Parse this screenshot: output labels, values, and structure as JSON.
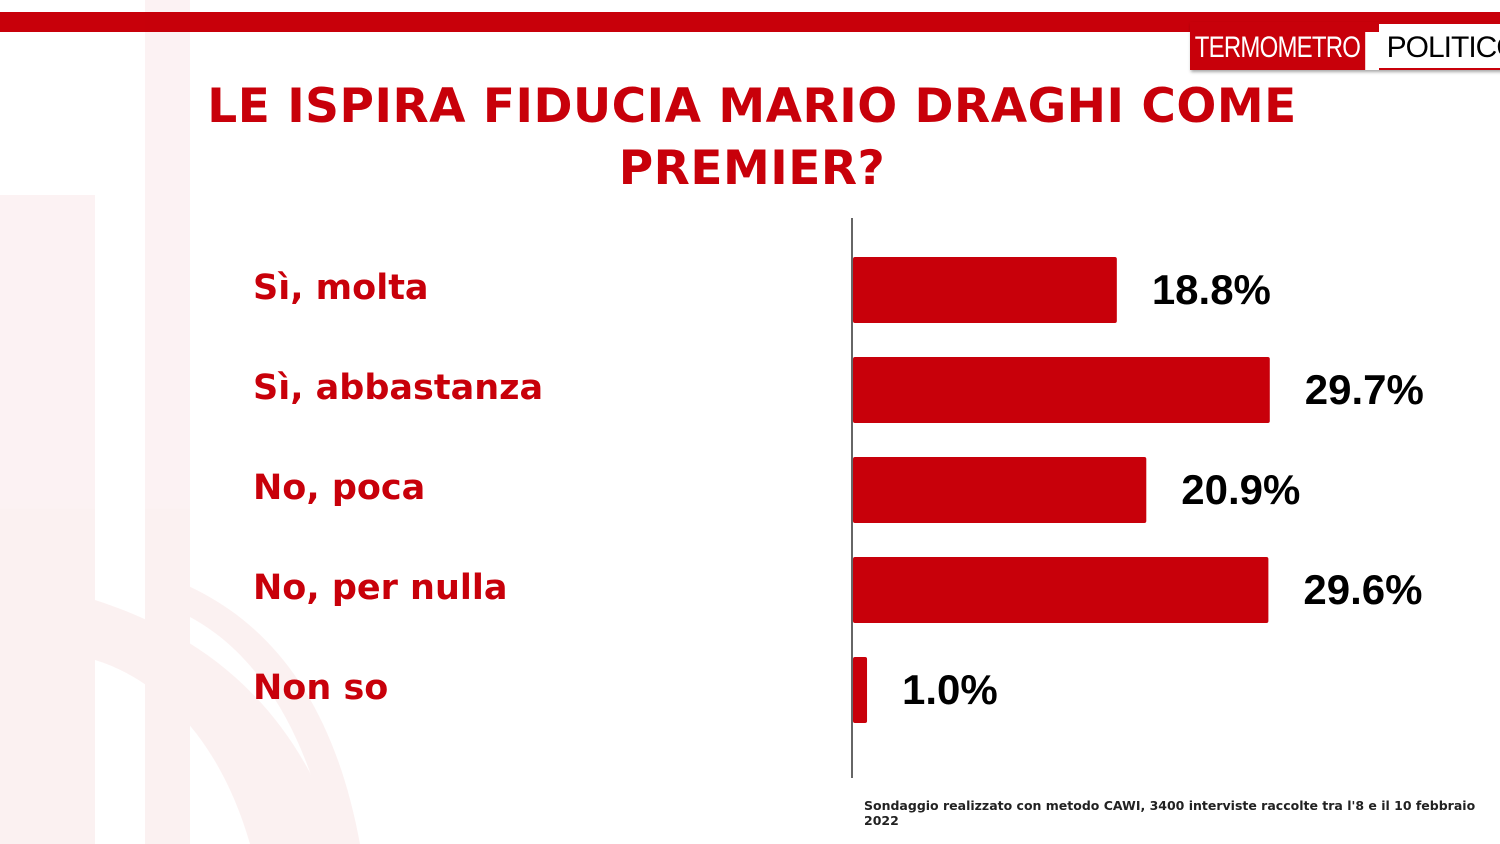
{
  "logo": {
    "part1": "TERMOMETRO",
    "part2": "POLITICO"
  },
  "title": "LE ISPIRA FIDUCIA MARIO DRAGHI COME PREMIER?",
  "footnote": "Sondaggio realizzato con metodo CAWI, 3400 interviste raccolte tra l'8 e il 10 febbraio 2022",
  "colors": {
    "accent": "#c8000a"
  },
  "chart_data": {
    "type": "bar",
    "orientation": "horizontal",
    "title": "LE ISPIRA FIDUCIA MARIO DRAGHI COME PREMIER?",
    "categories": [
      "Sì, molta",
      "Sì, abbastanza",
      "No, poca",
      "No, per nulla",
      "Non so"
    ],
    "values": [
      18.8,
      29.7,
      20.9,
      29.6,
      1.0
    ],
    "value_labels": [
      "18.8%",
      "29.7%",
      "20.9%",
      "29.6%",
      "1.0%"
    ],
    "unit": "%",
    "xlim": [
      0,
      30
    ],
    "grid": false,
    "legend": "none",
    "bar_color": "#c8000a"
  }
}
